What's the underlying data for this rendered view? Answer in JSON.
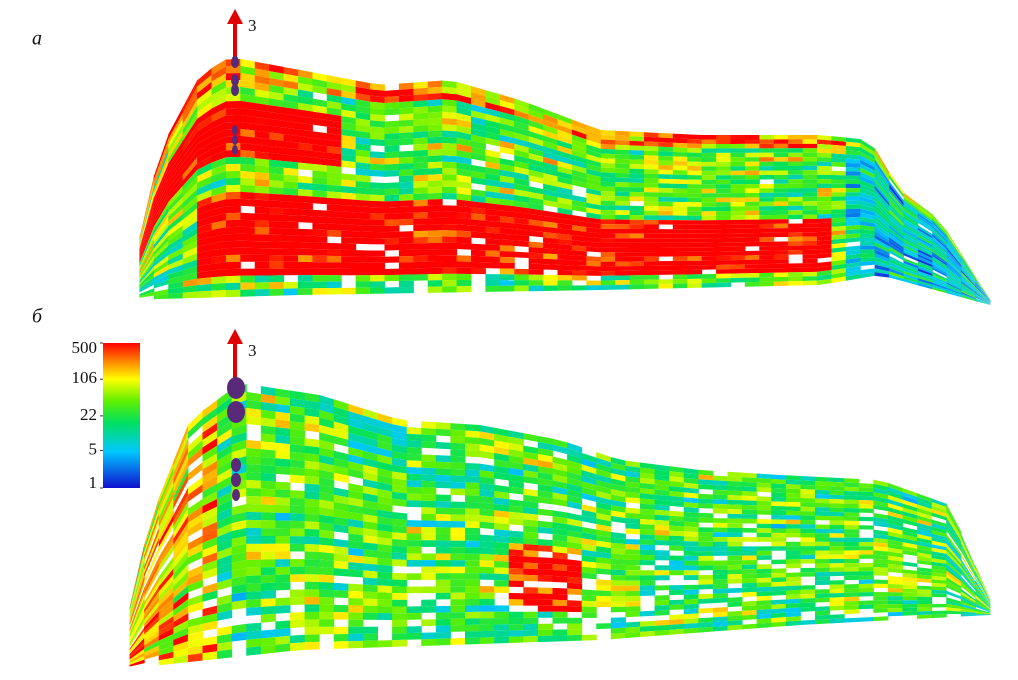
{
  "panels": [
    {
      "label": "а",
      "well_label": "3"
    },
    {
      "label": "б",
      "well_label": "3"
    }
  ],
  "colorbar": {
    "ticks": [
      500,
      106,
      22,
      5,
      1
    ],
    "range": [
      1,
      500
    ],
    "scale": "log"
  }
}
